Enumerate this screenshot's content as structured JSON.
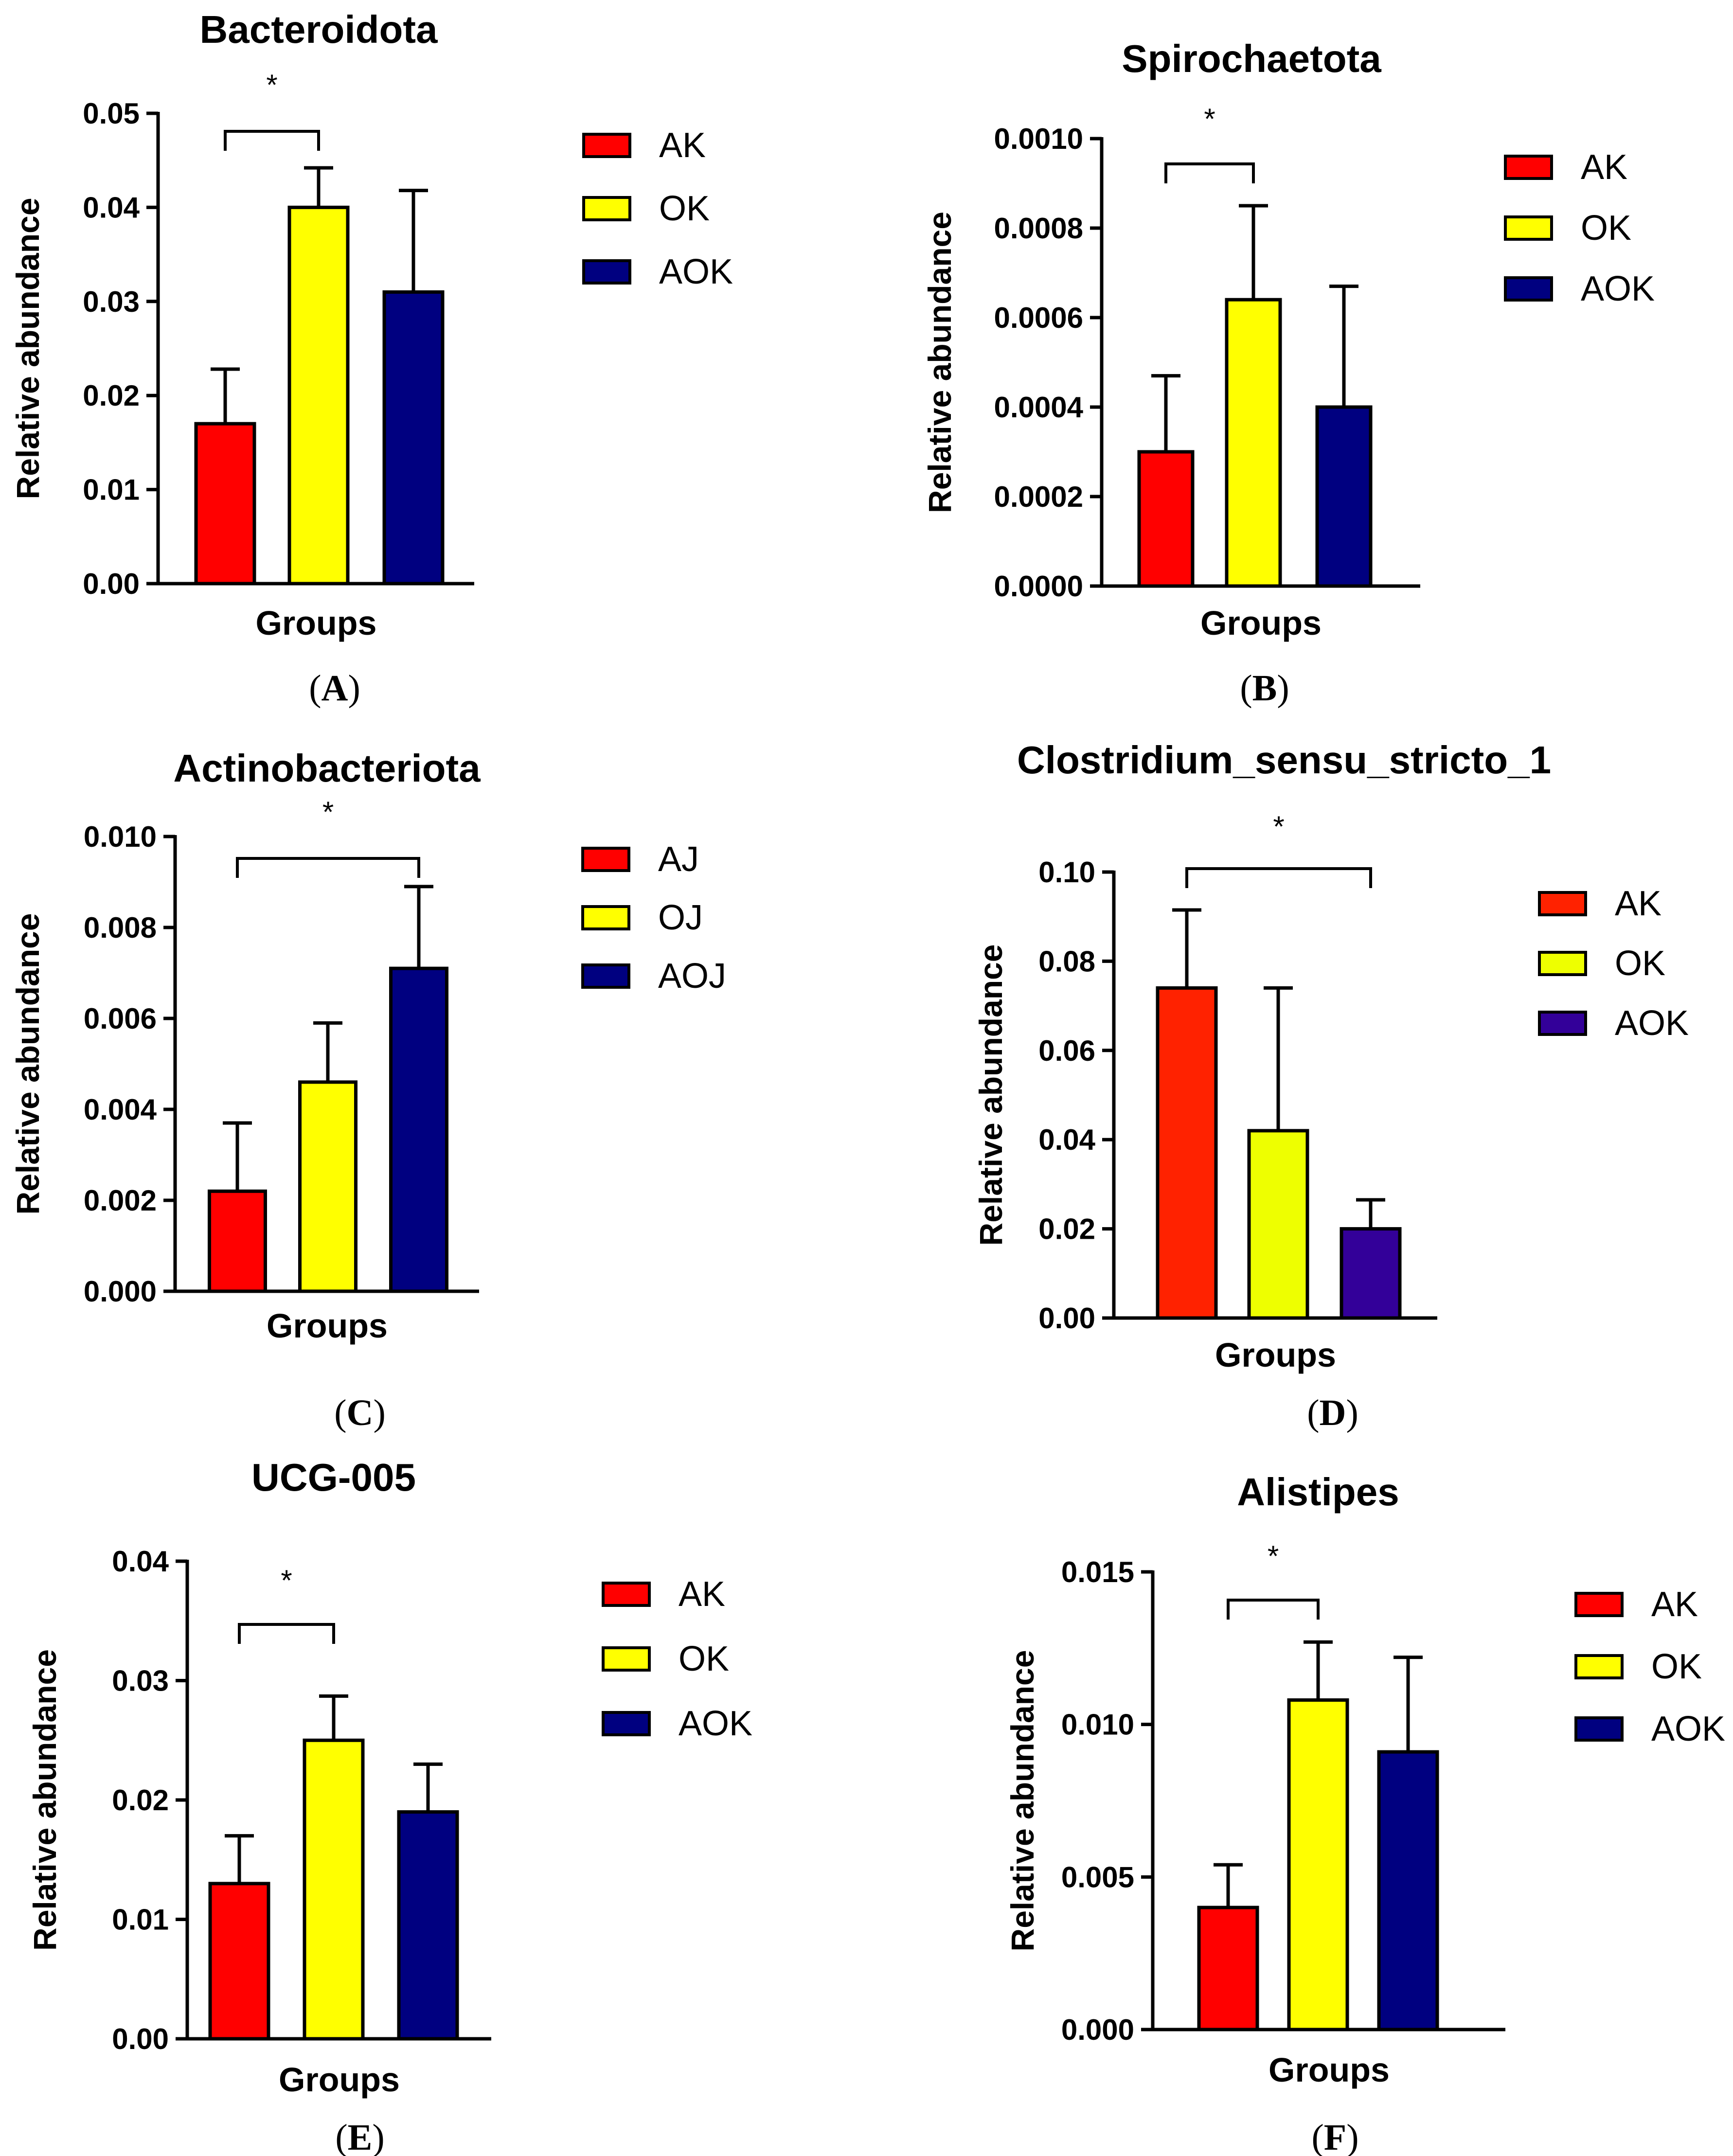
{
  "chart_data": [
    {
      "type": "bar",
      "panel": "A",
      "title": "Bacteroidota",
      "xlabel": "Groups",
      "ylabel": "Relative abundance",
      "ylim": [
        0,
        0.05
      ],
      "yticks": [
        "0.00",
        "0.01",
        "0.02",
        "0.03",
        "0.04",
        "0.05"
      ],
      "categories": [
        "AK",
        "OK",
        "AOK"
      ],
      "values": [
        0.017,
        0.04,
        0.031
      ],
      "errors": [
        0.0058,
        0.0042,
        0.0108
      ],
      "colors": [
        "#ff0000",
        "#ffff00",
        "#000080"
      ],
      "legend": [
        "AK",
        "OK",
        "AOK"
      ],
      "significance": {
        "from": 0,
        "to": 1,
        "label": "*"
      }
    },
    {
      "type": "bar",
      "panel": "B",
      "title": "Spirochaetota",
      "xlabel": "Groups",
      "ylabel": "Relative abundance",
      "ylim": [
        0,
        0.001
      ],
      "yticks": [
        "0.0000",
        "0.0002",
        "0.0004",
        "0.0006",
        "0.0008",
        "0.0010"
      ],
      "categories": [
        "AK",
        "OK",
        "AOK"
      ],
      "values": [
        0.0003,
        0.00064,
        0.0004
      ],
      "errors": [
        0.00017,
        0.00021,
        0.00027
      ],
      "colors": [
        "#ff0000",
        "#ffff00",
        "#000080"
      ],
      "legend": [
        "AK",
        "OK",
        "AOK"
      ],
      "significance": {
        "from": 0,
        "to": 1,
        "label": "*"
      }
    },
    {
      "type": "bar",
      "panel": "C",
      "title": "Actinobacteriota",
      "xlabel": "Groups",
      "ylabel": "Relative abundance",
      "ylim": [
        0,
        0.01
      ],
      "yticks": [
        "0.000",
        "0.002",
        "0.004",
        "0.006",
        "0.008",
        "0.010"
      ],
      "categories": [
        "AJ",
        "OJ",
        "AOJ"
      ],
      "values": [
        0.0022,
        0.0046,
        0.0071
      ],
      "errors": [
        0.0015,
        0.0013,
        0.0018
      ],
      "colors": [
        "#ff0000",
        "#ffff00",
        "#000080"
      ],
      "legend": [
        "AJ",
        "OJ",
        "AOJ"
      ],
      "significance": {
        "from": 0,
        "to": 2,
        "label": "*"
      }
    },
    {
      "type": "bar",
      "panel": "D",
      "title": "Clostridium_sensu_stricto_1",
      "xlabel": "Groups",
      "ylabel": "Relative abundance",
      "ylim": [
        0,
        0.1
      ],
      "yticks": [
        "0.00",
        "0.02",
        "0.04",
        "0.06",
        "0.08",
        "0.10"
      ],
      "categories": [
        "AK",
        "OK",
        "AOK"
      ],
      "values": [
        0.074,
        0.042,
        0.02
      ],
      "errors": [
        0.0175,
        0.032,
        0.0065
      ],
      "colors": [
        "#ff2200",
        "#eeff00",
        "#330099"
      ],
      "legend": [
        "AK",
        "OK",
        "AOK"
      ],
      "significance": {
        "from": 0,
        "to": 2,
        "label": "*"
      }
    },
    {
      "type": "bar",
      "panel": "E",
      "title": "UCG-005",
      "xlabel": "Groups",
      "ylabel": "Relative abundance",
      "ylim": [
        0,
        0.04
      ],
      "yticks": [
        "0.00",
        "0.01",
        "0.02",
        "0.03",
        "0.04"
      ],
      "categories": [
        "AK",
        "OK",
        "AOK"
      ],
      "values": [
        0.013,
        0.025,
        0.019
      ],
      "errors": [
        0.004,
        0.0037,
        0.004
      ],
      "colors": [
        "#ff0000",
        "#ffff00",
        "#000080"
      ],
      "legend": [
        "AK",
        "OK",
        "AOK"
      ],
      "significance": {
        "from": 0,
        "to": 1,
        "label": "*"
      }
    },
    {
      "type": "bar",
      "panel": "F",
      "title": "Alistipes",
      "xlabel": "Groups",
      "ylabel": "Relative abundance",
      "ylim": [
        0,
        0.015
      ],
      "yticks": [
        "0.000",
        "0.005",
        "0.010",
        "0.015"
      ],
      "categories": [
        "AK",
        "OK",
        "AOK"
      ],
      "values": [
        0.004,
        0.0108,
        0.0091
      ],
      "errors": [
        0.0014,
        0.0019,
        0.0031
      ],
      "colors": [
        "#ff0000",
        "#ffff00",
        "#000080"
      ],
      "legend": [
        "AK",
        "OK",
        "AOK"
      ],
      "significance": {
        "from": 0,
        "to": 1,
        "label": "*"
      }
    }
  ]
}
